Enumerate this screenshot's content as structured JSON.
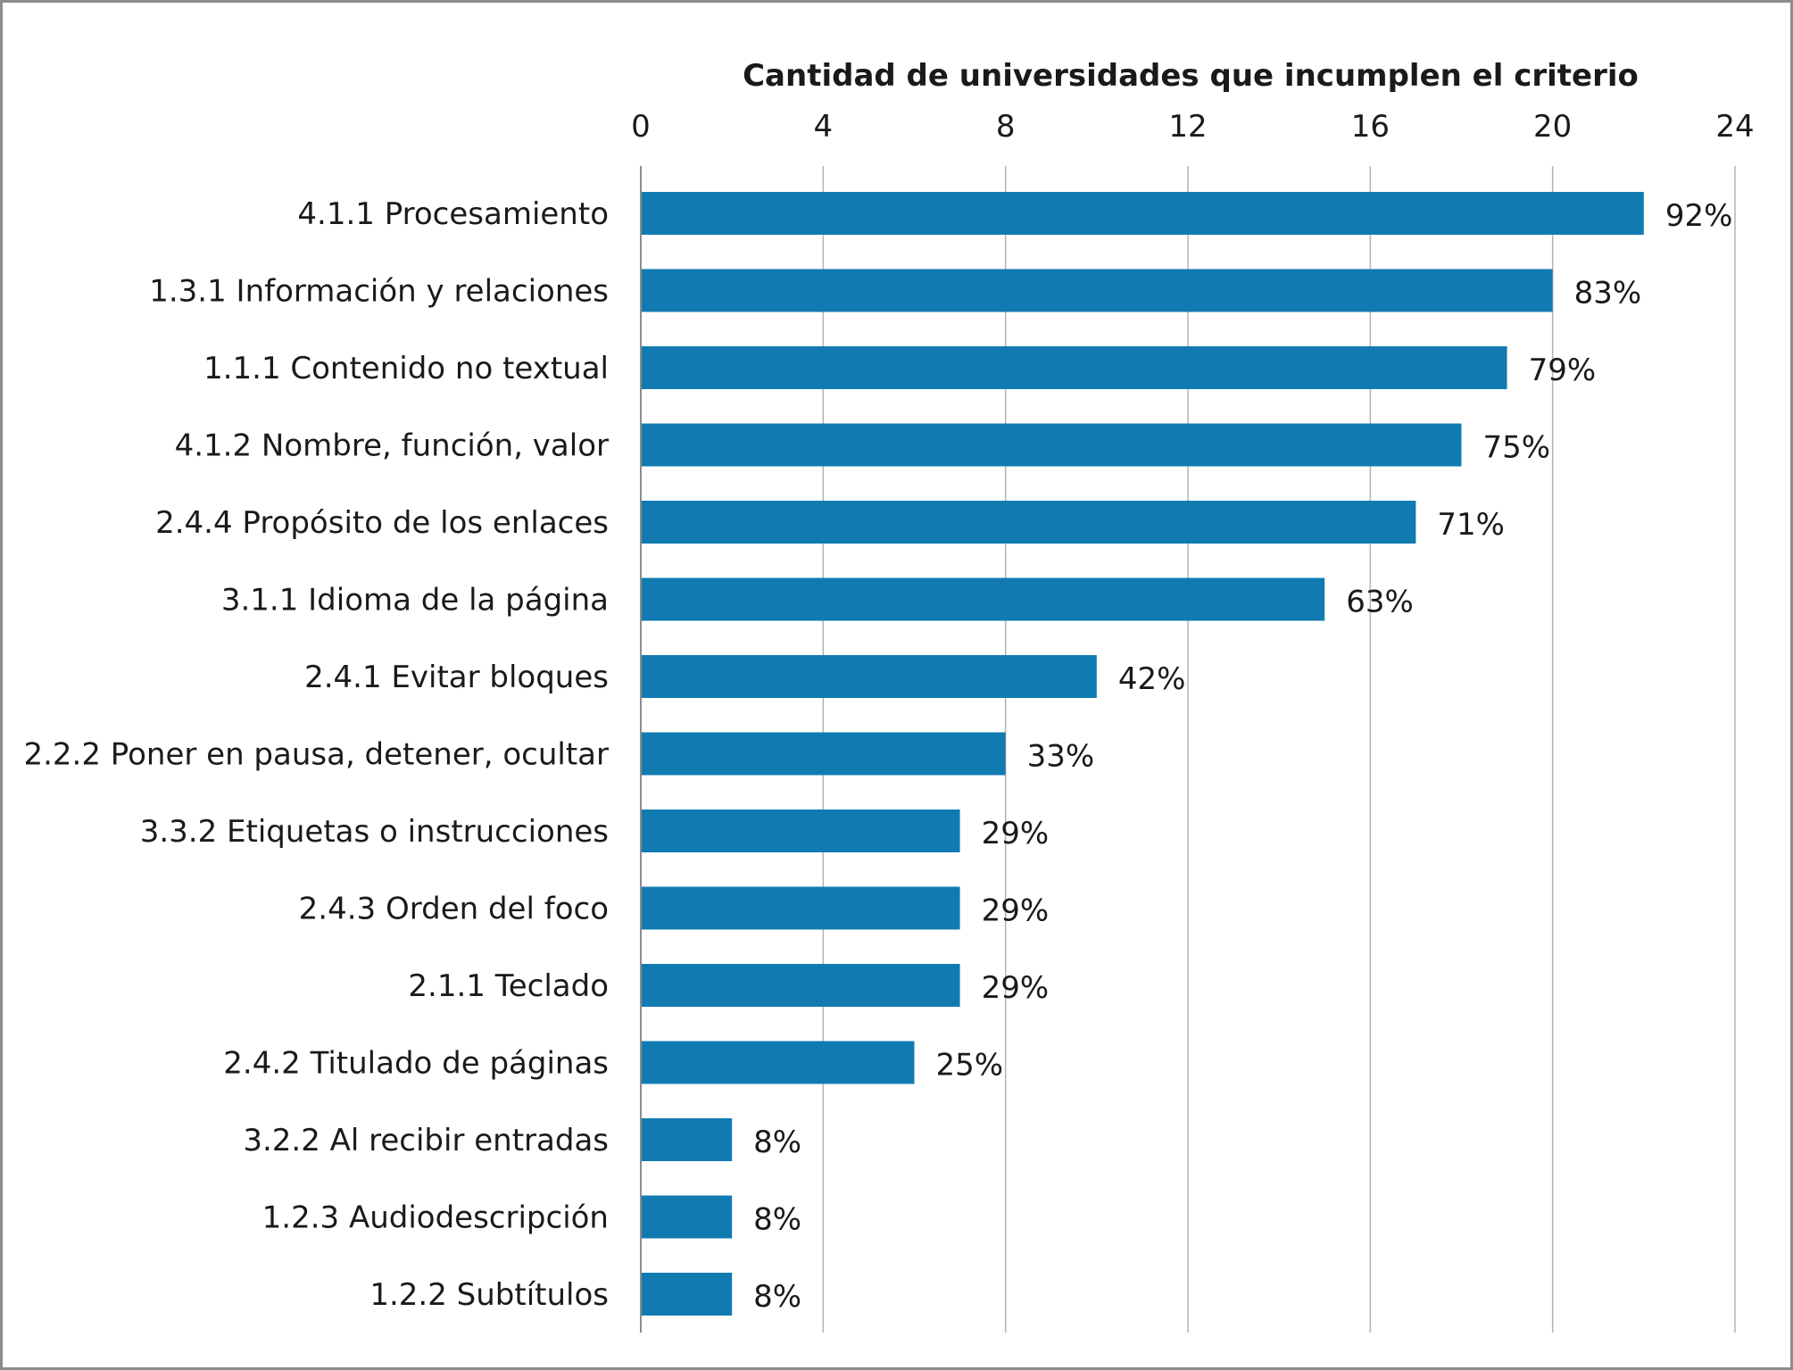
{
  "chart_data": {
    "type": "bar",
    "orientation": "horizontal",
    "xlabel": "Cantidad de universidades que incumplen el criterio",
    "xlim": [
      0,
      24
    ],
    "x_ticks": [
      "0",
      "4",
      "8",
      "12",
      "16",
      "20",
      "24"
    ],
    "axis_position": "top",
    "grid": true,
    "bar_color": "#117bb1",
    "categories": [
      "4.1.1 Procesamiento",
      "1.3.1 Información y relaciones",
      "1.1.1 Contenido no textual",
      "4.1.2 Nombre, función, valor",
      "2.4.4 Propósito de los enlaces",
      "3.1.1 Idioma de la página",
      "2.4.1 Evitar bloques",
      "2.2.2 Poner en pausa, detener, ocultar",
      "3.3.2 Etiquetas o instrucciones",
      "2.4.3 Orden del foco",
      "2.1.1 Teclado",
      "2.4.2 Titulado de páginas",
      "3.2.2 Al recibir entradas",
      "1.2.3 Audiodescripción",
      "1.2.2 Subtítulos"
    ],
    "values": [
      22,
      20,
      19,
      18,
      17,
      15,
      10,
      8,
      7,
      7,
      7,
      6,
      2,
      2,
      2
    ],
    "data_labels": [
      "92%",
      "83%",
      "79%",
      "75%",
      "71%",
      "63%",
      "42%",
      "33%",
      "29%",
      "29%",
      "29%",
      "25%",
      "8%",
      "8%",
      "8%"
    ]
  }
}
